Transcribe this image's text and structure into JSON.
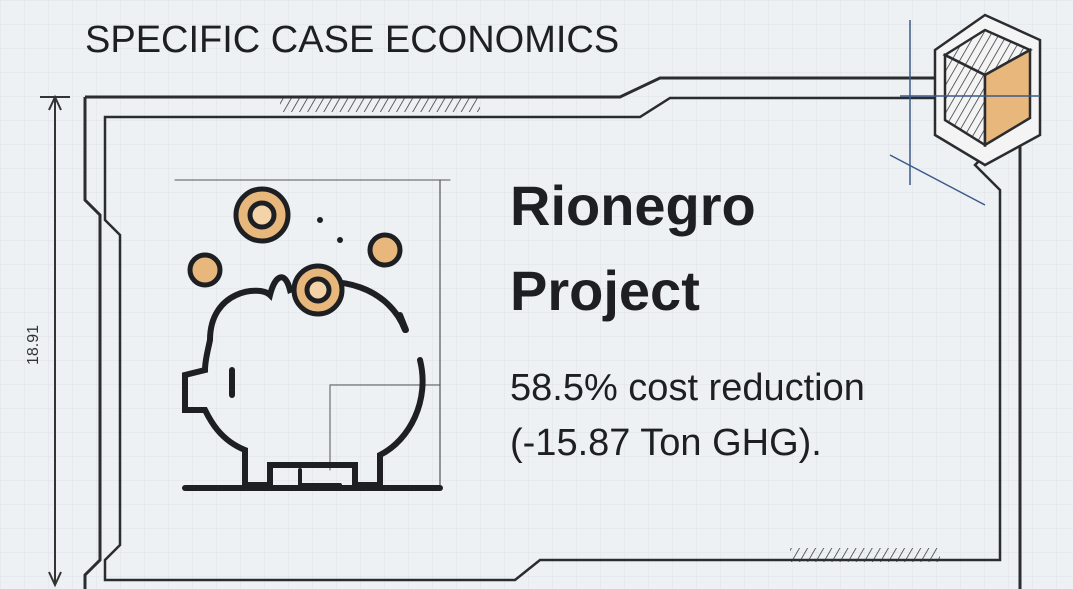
{
  "header": {
    "title": "SPECIFIC CASE ECONOMICS"
  },
  "dimension_label": "18.91",
  "card": {
    "title_lines": [
      "Rionegro",
      "Project"
    ],
    "description_lines": [
      "58.5% cost reduction",
      "(-15.87 Ton GHG)."
    ]
  }
}
